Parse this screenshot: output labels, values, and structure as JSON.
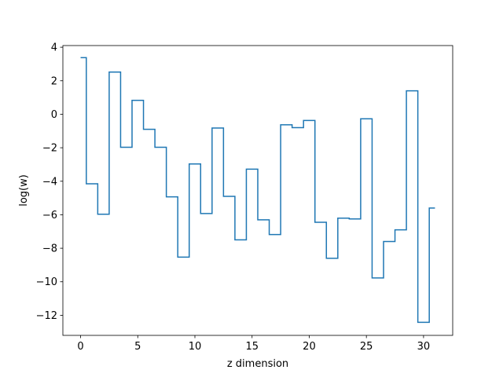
{
  "chart_data": {
    "type": "line",
    "drawstyle": "steps-mid",
    "title": "",
    "xlabel": "z dimension",
    "ylabel": "log(w)",
    "xlim": [
      -1.55,
      32.55
    ],
    "ylim": [
      -13.2,
      4.1
    ],
    "xticks": [
      0,
      5,
      10,
      15,
      20,
      25,
      30
    ],
    "yticks": [
      4,
      2,
      0,
      -2,
      -4,
      -6,
      -8,
      -10,
      -12
    ],
    "grid": false,
    "legend": "none",
    "series": [
      {
        "color": "#1f77b4",
        "x": [
          0,
          1,
          2,
          3,
          4,
          5,
          6,
          7,
          8,
          9,
          10,
          11,
          12,
          13,
          14,
          15,
          16,
          17,
          18,
          19,
          20,
          21,
          22,
          23,
          24,
          25,
          26,
          27,
          28,
          29,
          30,
          31
        ],
        "y": [
          3.38,
          -4.15,
          -5.97,
          2.52,
          -1.97,
          0.83,
          -0.9,
          -1.97,
          -4.93,
          -8.53,
          -2.97,
          -5.93,
          -0.82,
          -4.9,
          -7.5,
          -3.28,
          -6.3,
          -7.18,
          -0.63,
          -0.8,
          -0.37,
          -6.45,
          -8.6,
          -6.2,
          -6.25,
          -0.27,
          -9.77,
          -7.6,
          -6.9,
          1.4,
          -12.42,
          -5.6
        ]
      }
    ]
  }
}
